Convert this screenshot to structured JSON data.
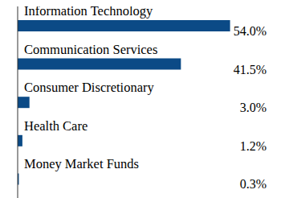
{
  "chart_data": {
    "type": "bar",
    "orientation": "horizontal",
    "categories": [
      "Information Technology",
      "Communication Services",
      "Consumer Discretionary",
      "Health Care",
      "Money Market Funds"
    ],
    "values": [
      54.0,
      41.5,
      3.0,
      1.2,
      0.3
    ],
    "value_labels": [
      "54.0%",
      "41.5%",
      "3.0%",
      "1.2%",
      "0.3%"
    ],
    "data_labels": true,
    "color": "#0b4a86",
    "xlim": [
      0,
      60
    ],
    "tick_labels": false,
    "grid": false
  }
}
